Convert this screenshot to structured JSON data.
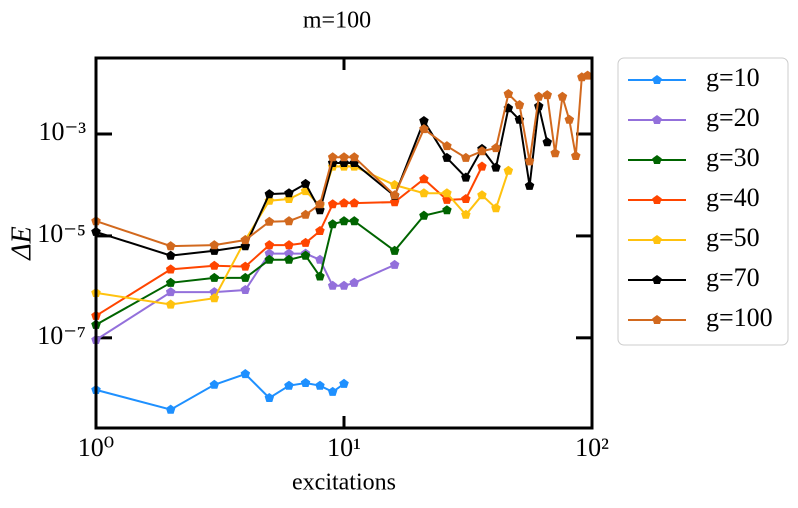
{
  "chart_data": {
    "type": "line",
    "title": "m=100",
    "x_label": "excitations",
    "y_label": "ΔE",
    "xscale": "log",
    "yscale": "log",
    "xlim": [
      1,
      100
    ],
    "ylim": [
      1.7e-09,
      0.031
    ],
    "xticks": [
      {
        "value": 1,
        "label": "10⁰"
      },
      {
        "value": 10,
        "label": "10¹"
      },
      {
        "value": 100,
        "label": "10²"
      }
    ],
    "yticks": [
      {
        "value": 1e-07,
        "label": "10⁻⁷"
      },
      {
        "value": 1e-05,
        "label": "10⁻⁵"
      },
      {
        "value": 0.001,
        "label": "10⁻³"
      }
    ],
    "legend": "outside right",
    "series": [
      {
        "name": "g=10",
        "color": "#1e90ff",
        "x": [
          1,
          2,
          3,
          4,
          5,
          6,
          7,
          8,
          9,
          10
        ],
        "values": [
          9.5e-09,
          3.9e-09,
          1.2e-08,
          1.95e-08,
          6.6e-09,
          1.15e-08,
          1.3e-08,
          1.15e-08,
          8.7e-09,
          1.25e-08
        ]
      },
      {
        "name": "g=20",
        "color": "#9370db",
        "x": [
          1,
          2,
          3,
          4,
          5,
          6,
          7,
          8,
          9,
          10,
          11,
          16
        ],
        "values": [
          9.1e-08,
          7.9e-07,
          7.9e-07,
          8.7e-07,
          4.5e-06,
          4.5e-06,
          4.5e-06,
          3.4e-06,
          1.05e-06,
          1.05e-06,
          1.2e-06,
          2.7e-06
        ]
      },
      {
        "name": "g=30",
        "color": "#006400",
        "x": [
          1,
          2,
          3,
          4,
          5,
          6,
          7,
          8,
          9,
          10,
          11,
          16,
          21,
          26
        ],
        "values": [
          1.8e-07,
          1.2e-06,
          1.5e-06,
          1.5e-06,
          3.4e-06,
          3.4e-06,
          4.1e-06,
          1.6e-06,
          1.7e-05,
          1.95e-05,
          1.95e-05,
          5.1e-06,
          2.5e-05,
          3.2e-05
        ]
      },
      {
        "name": "g=40",
        "color": "#ff4500",
        "x": [
          1,
          2,
          3,
          4,
          5,
          6,
          7,
          8,
          9,
          10,
          11,
          16,
          21,
          26,
          31,
          36
        ],
        "values": [
          2.7e-07,
          2.2e-06,
          2.6e-06,
          2.5e-06,
          6.6e-06,
          6.6e-06,
          7.3e-06,
          1.25e-05,
          4.2e-05,
          4.4e-05,
          4.4e-05,
          4.6e-05,
          0.00013,
          5.1e-05,
          5.3e-05,
          0.00023
        ]
      },
      {
        "name": "g=50",
        "color": "#ffc20e",
        "x": [
          1,
          2,
          3,
          4,
          5,
          6,
          7,
          8,
          9,
          10,
          11,
          16,
          21,
          26,
          31,
          36,
          41,
          46
        ],
        "values": [
          7.6e-07,
          4.5e-07,
          6e-07,
          8.3e-06,
          4.9e-05,
          5.3e-05,
          7.6e-05,
          3.9e-05,
          0.00023,
          0.00023,
          0.00023,
          0.0001,
          6.9e-05,
          6.9e-05,
          2.6e-05,
          6.3e-05,
          3.5e-05,
          0.00019
        ]
      },
      {
        "name": "g=70",
        "color": "#000000",
        "x": [
          1,
          2,
          3,
          4,
          5,
          6,
          7,
          8,
          9,
          10,
          11,
          16,
          21,
          26,
          31,
          36,
          41,
          46,
          51,
          56,
          61,
          66
        ],
        "values": [
          1.2e-05,
          4.1e-06,
          5.1e-06,
          6.3e-06,
          6.6e-05,
          6.9e-05,
          0.000105,
          3.2e-05,
          0.00027,
          0.00027,
          0.00027,
          6.1e-05,
          0.0018,
          0.00034,
          0.00014,
          0.00051,
          0.00022,
          0.0032,
          0.0019,
          9.6e-05,
          0.0035,
          0.00069
        ]
      },
      {
        "name": "g=100",
        "color": "#d2691e",
        "x": [
          1,
          2,
          3,
          4,
          5,
          6,
          7,
          8,
          9,
          10,
          11,
          16,
          21,
          26,
          31,
          36,
          41,
          46,
          51,
          56,
          61,
          66,
          71,
          76,
          81,
          86,
          91,
          96
        ],
        "values": [
          1.95e-05,
          6.3e-06,
          6.6e-06,
          8.3e-06,
          1.9e-05,
          1.95e-05,
          2.6e-05,
          4.2e-05,
          0.00035,
          0.00035,
          0.00035,
          6.3e-05,
          0.00125,
          0.00058,
          0.00034,
          0.00046,
          0.00053,
          0.0061,
          0.0037,
          0.00029,
          0.0054,
          0.0058,
          0.00042,
          0.0054,
          0.0019,
          0.00037,
          0.013,
          0.014
        ]
      }
    ]
  }
}
